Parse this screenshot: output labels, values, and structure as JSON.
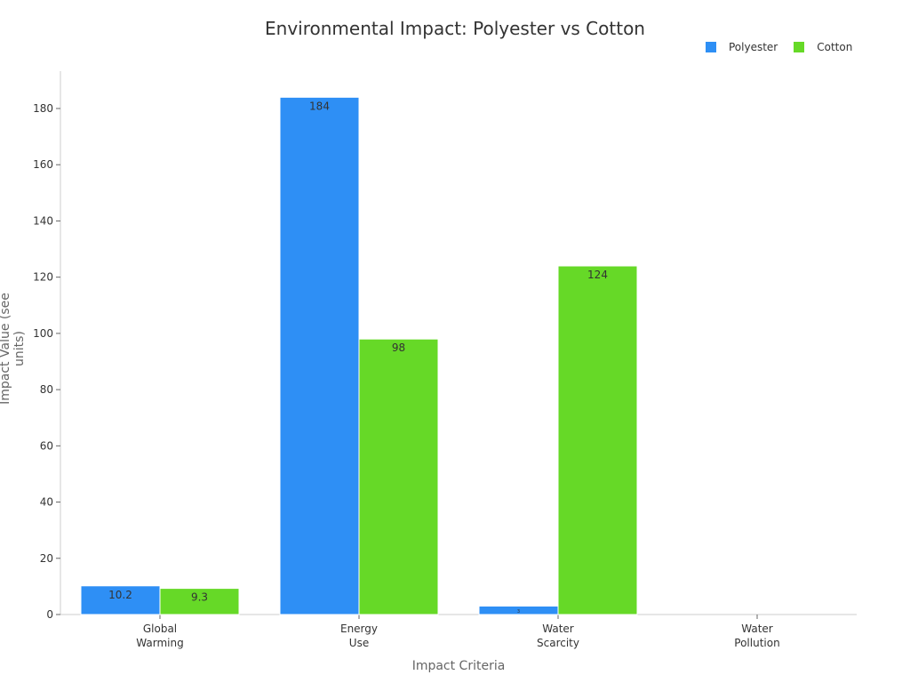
{
  "chart_data": {
    "type": "bar",
    "title": "Environmental Impact: Polyester vs Cotton",
    "xlabel": "Impact Criteria",
    "ylabel": "Impact Value (see units)",
    "categories": [
      "Global\nWarming",
      "Energy\nUse",
      "Water\nScarcity",
      "Water\nPollution"
    ],
    "series": [
      {
        "name": "Polyester",
        "color": "#2e8ff5",
        "values": [
          10.2,
          184,
          3,
          null
        ],
        "labels": [
          "10.2",
          "184",
          "3",
          ""
        ]
      },
      {
        "name": "Cotton",
        "color": "#66d927",
        "values": [
          9.3,
          98,
          124,
          null
        ],
        "labels": [
          "9.3",
          "98",
          "124",
          ""
        ]
      }
    ],
    "ylim": [
      0,
      190
    ],
    "yticks": [
      0,
      20,
      40,
      60,
      80,
      100,
      120,
      140,
      160,
      180
    ],
    "grid": false,
    "legend_position": "top-right"
  },
  "legend": {
    "polyester": "Polyester",
    "cotton": "Cotton"
  }
}
